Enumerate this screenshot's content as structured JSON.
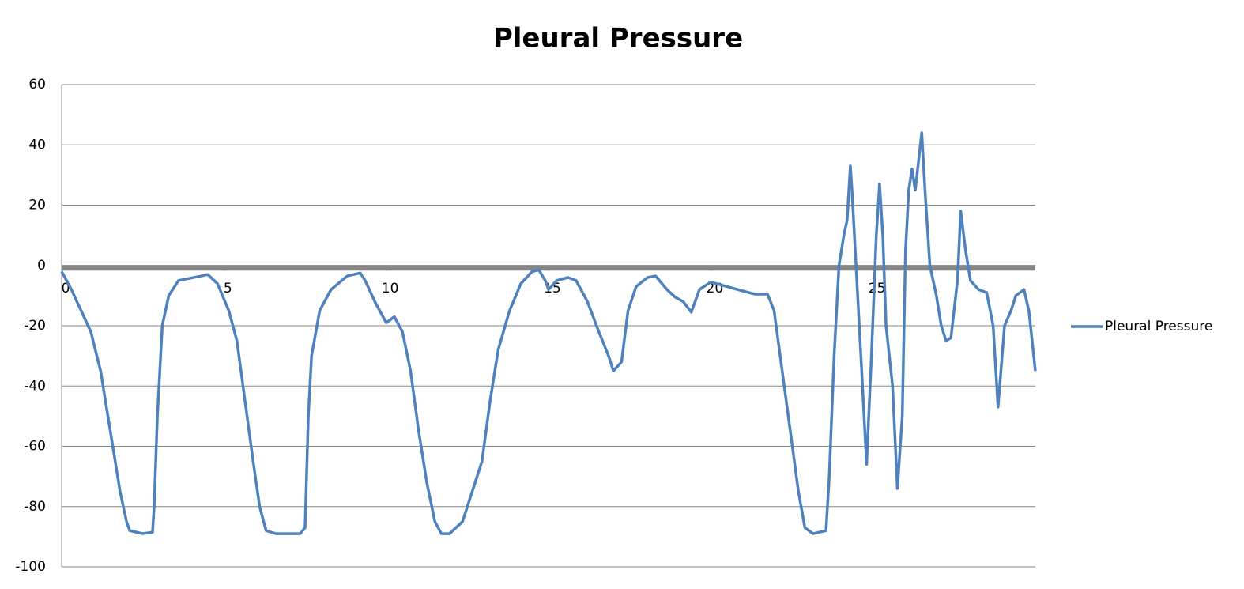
{
  "chart_data": {
    "type": "line",
    "title": "Pleural Pressure",
    "x": [
      0,
      0.3,
      0.6,
      0.9,
      1.2,
      1.5,
      1.8,
      2.0,
      2.1,
      2.5,
      2.8,
      2.85,
      2.95,
      3.1,
      3.3,
      3.6,
      4.3,
      4.5,
      4.8,
      5.15,
      5.4,
      5.65,
      5.9,
      6.1,
      6.3,
      6.6,
      7.35,
      7.5,
      7.6,
      7.7,
      7.95,
      8.3,
      8.8,
      9.2,
      9.35,
      9.65,
      10.0,
      10.25,
      10.5,
      10.75,
      11.0,
      11.25,
      11.5,
      11.7,
      11.95,
      12.35,
      12.65,
      12.95,
      13.2,
      13.45,
      13.8,
      14.15,
      14.5,
      14.7,
      14.9,
      15.0,
      15.25,
      15.6,
      15.85,
      16.2,
      16.55,
      16.85,
      17.0,
      17.25,
      17.45,
      17.7,
      18.05,
      18.3,
      18.65,
      18.9,
      19.15,
      19.4,
      19.65,
      20.0,
      20.5,
      21.0,
      21.35,
      21.75,
      21.95,
      22.2,
      22.45,
      22.7,
      22.9,
      23.15,
      23.55,
      23.65,
      23.8,
      23.95,
      24.1,
      24.2,
      24.3,
      24.35,
      24.5,
      24.65,
      24.8,
      24.95,
      25.1,
      25.2,
      25.3,
      25.4,
      25.6,
      25.75,
      25.9,
      26.0,
      26.1,
      26.2,
      26.3,
      26.5,
      26.6,
      26.75,
      26.95,
      27.1,
      27.25,
      27.4,
      27.6,
      27.7,
      27.85,
      28.0,
      28.25,
      28.5,
      28.7,
      28.85,
      29.05,
      29.25,
      29.4,
      29.65,
      29.8,
      30.0
    ],
    "series": [
      {
        "name": "Pleural Pressure",
        "color": "#4f81bd",
        "values": [
          -2,
          -8,
          -15,
          -22,
          -35,
          -55,
          -75,
          -85,
          -88,
          -89,
          -88.5,
          -80,
          -50,
          -20,
          -10,
          -5,
          -3.5,
          -3,
          -6,
          -15,
          -25,
          -45,
          -65,
          -80,
          -88,
          -89,
          -89,
          -87,
          -50,
          -30,
          -15,
          -8,
          -3.5,
          -2.5,
          -5,
          -12,
          -19,
          -17,
          -22,
          -35,
          -55,
          -72,
          -85,
          -89,
          -89,
          -85,
          -75,
          -65,
          -45,
          -28,
          -15,
          -6,
          -2,
          -1.5,
          -5,
          -8,
          -5,
          -4,
          -5,
          -12,
          -22,
          -30,
          -35,
          -32,
          -15,
          -7,
          -4,
          -3.5,
          -8,
          -10.5,
          -12,
          -15.5,
          -8,
          -5.5,
          -7,
          -8.5,
          -9.5,
          -9.5,
          -15,
          -35,
          -55,
          -75,
          -87,
          -89,
          -88,
          -70,
          -30,
          0,
          10,
          15,
          33,
          25,
          -5,
          -35,
          -66,
          -30,
          10,
          27,
          10,
          -20,
          -40,
          -74,
          -50,
          5,
          25,
          32,
          25,
          44,
          25,
          0,
          -10,
          -20,
          -25,
          -24,
          -5,
          18,
          5,
          -5,
          -8,
          -9,
          -20,
          -47,
          -20,
          -15,
          -10,
          -8,
          -15,
          -35
        ]
      }
    ],
    "xlim": [
      0,
      30
    ],
    "xticks": [
      0,
      5,
      10,
      15,
      20,
      25
    ],
    "ylim": [
      -100,
      60
    ],
    "yticks": [
      -100,
      -80,
      -60,
      -40,
      -20,
      0,
      20,
      40,
      60
    ],
    "grid": true,
    "legend": "right"
  }
}
